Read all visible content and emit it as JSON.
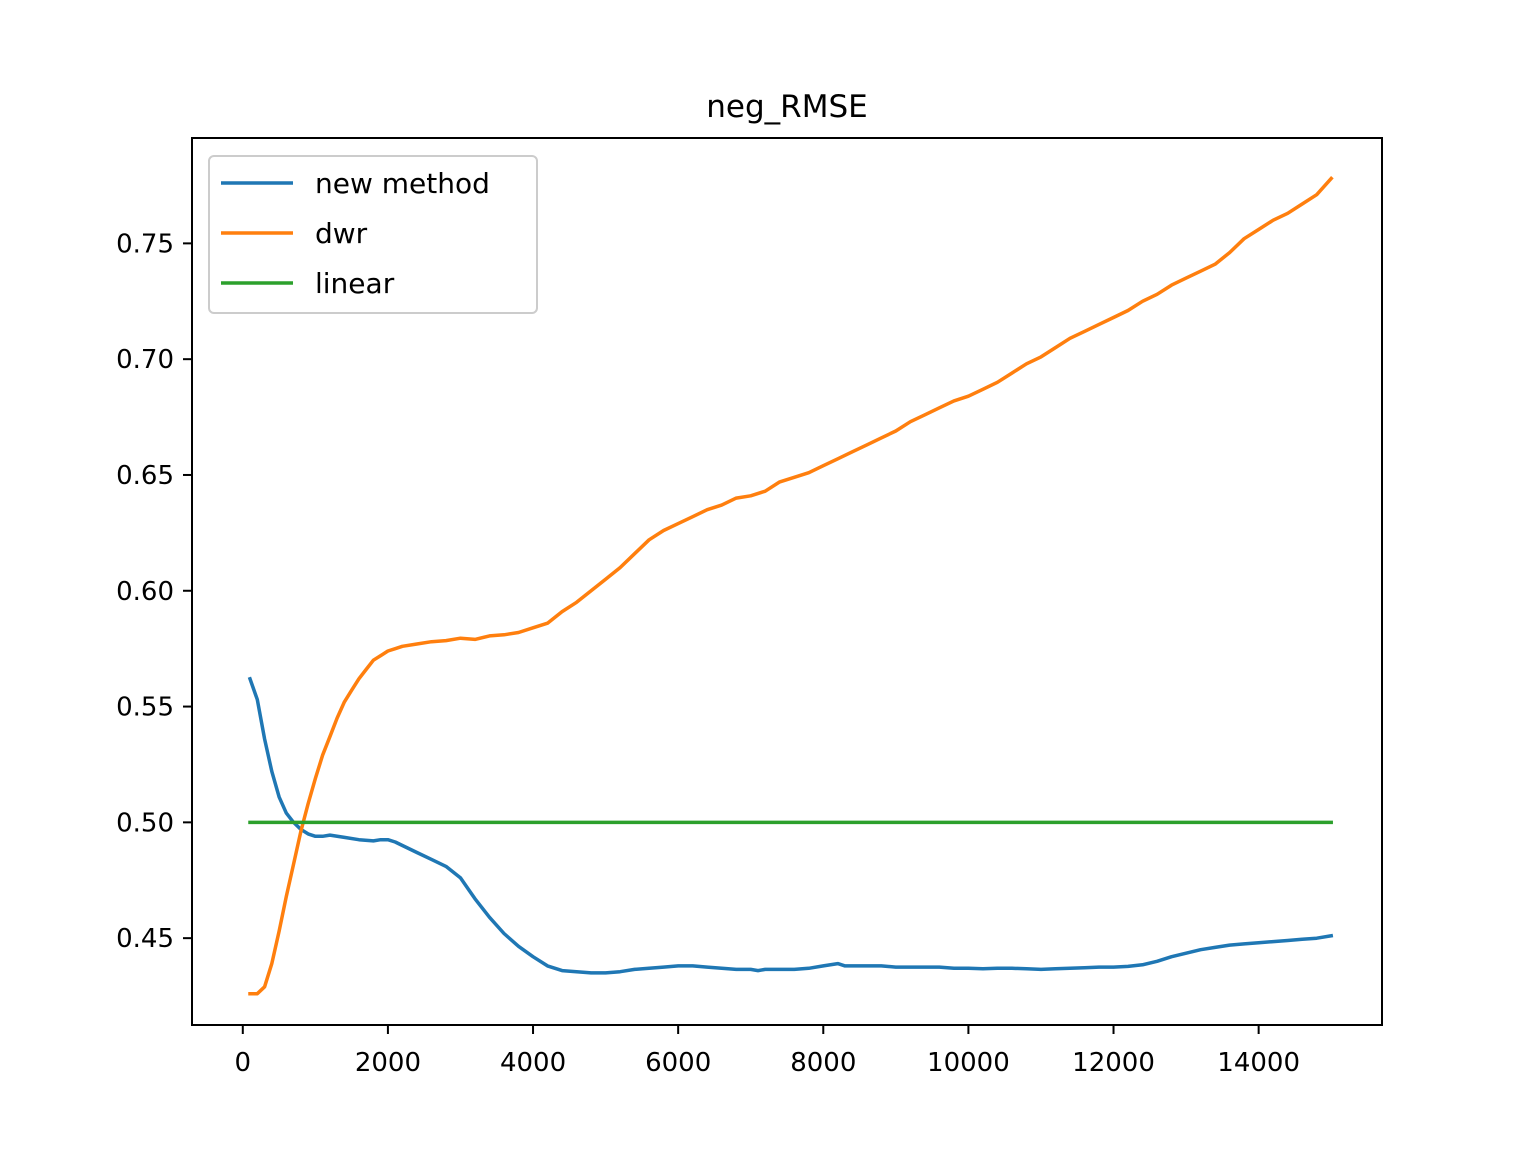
{
  "chart_data": {
    "type": "line",
    "title": "neg_RMSE",
    "xlabel": "",
    "ylabel": "",
    "xlim": [
      -700,
      15700
    ],
    "ylim": [
      0.4125,
      0.7955
    ],
    "xticks": [
      0,
      2000,
      4000,
      6000,
      8000,
      10000,
      12000,
      14000
    ],
    "xtick_labels": [
      "0",
      "2000",
      "4000",
      "6000",
      "8000",
      "10000",
      "12000",
      "14000"
    ],
    "yticks": [
      0.45,
      0.5,
      0.55,
      0.6,
      0.65,
      0.7,
      0.75
    ],
    "ytick_labels": [
      "0.45",
      "0.50",
      "0.55",
      "0.60",
      "0.65",
      "0.70",
      "0.75"
    ],
    "grid": false,
    "legend_position": "top-left",
    "series": [
      {
        "name": "new method",
        "color": "#1f77b4",
        "points": [
          [
            100,
            0.562
          ],
          [
            200,
            0.553
          ],
          [
            300,
            0.536
          ],
          [
            400,
            0.522
          ],
          [
            500,
            0.511
          ],
          [
            600,
            0.504
          ],
          [
            700,
            0.5
          ],
          [
            800,
            0.497
          ],
          [
            900,
            0.495
          ],
          [
            1000,
            0.494
          ],
          [
            1100,
            0.494
          ],
          [
            1200,
            0.4945
          ],
          [
            1400,
            0.4935
          ],
          [
            1600,
            0.4925
          ],
          [
            1800,
            0.492
          ],
          [
            1900,
            0.4925
          ],
          [
            2000,
            0.4925
          ],
          [
            2100,
            0.4915
          ],
          [
            2200,
            0.49
          ],
          [
            2400,
            0.487
          ],
          [
            2600,
            0.484
          ],
          [
            2800,
            0.481
          ],
          [
            3000,
            0.476
          ],
          [
            3200,
            0.467
          ],
          [
            3400,
            0.459
          ],
          [
            3600,
            0.452
          ],
          [
            3800,
            0.4465
          ],
          [
            4000,
            0.442
          ],
          [
            4200,
            0.438
          ],
          [
            4400,
            0.436
          ],
          [
            4600,
            0.4355
          ],
          [
            4800,
            0.435
          ],
          [
            5000,
            0.435
          ],
          [
            5200,
            0.4355
          ],
          [
            5400,
            0.4365
          ],
          [
            5600,
            0.437
          ],
          [
            5800,
            0.4375
          ],
          [
            6000,
            0.438
          ],
          [
            6200,
            0.438
          ],
          [
            6400,
            0.4375
          ],
          [
            6600,
            0.437
          ],
          [
            6800,
            0.4365
          ],
          [
            7000,
            0.4365
          ],
          [
            7100,
            0.436
          ],
          [
            7200,
            0.4365
          ],
          [
            7400,
            0.4365
          ],
          [
            7600,
            0.4365
          ],
          [
            7800,
            0.437
          ],
          [
            8000,
            0.438
          ],
          [
            8200,
            0.439
          ],
          [
            8300,
            0.438
          ],
          [
            8600,
            0.438
          ],
          [
            8800,
            0.438
          ],
          [
            9000,
            0.4375
          ],
          [
            9200,
            0.4375
          ],
          [
            9400,
            0.4375
          ],
          [
            9600,
            0.4375
          ],
          [
            9800,
            0.437
          ],
          [
            10000,
            0.437
          ],
          [
            10200,
            0.4368
          ],
          [
            10400,
            0.437
          ],
          [
            10600,
            0.437
          ],
          [
            10800,
            0.4368
          ],
          [
            11000,
            0.4365
          ],
          [
            11200,
            0.4368
          ],
          [
            11400,
            0.437
          ],
          [
            11600,
            0.4372
          ],
          [
            11800,
            0.4375
          ],
          [
            12000,
            0.4375
          ],
          [
            12200,
            0.4378
          ],
          [
            12400,
            0.4385
          ],
          [
            12600,
            0.44
          ],
          [
            12800,
            0.442
          ],
          [
            13000,
            0.4435
          ],
          [
            13200,
            0.445
          ],
          [
            13400,
            0.446
          ],
          [
            13600,
            0.447
          ],
          [
            13800,
            0.4475
          ],
          [
            14000,
            0.448
          ],
          [
            14200,
            0.4485
          ],
          [
            14400,
            0.449
          ],
          [
            14600,
            0.4495
          ],
          [
            14800,
            0.45
          ],
          [
            15000,
            0.451
          ]
        ]
      },
      {
        "name": "dwr",
        "color": "#ff7f0e",
        "points": [
          [
            100,
            0.426
          ],
          [
            200,
            0.426
          ],
          [
            300,
            0.429
          ],
          [
            400,
            0.439
          ],
          [
            500,
            0.453
          ],
          [
            600,
            0.468
          ],
          [
            700,
            0.482
          ],
          [
            800,
            0.496
          ],
          [
            900,
            0.508
          ],
          [
            1000,
            0.519
          ],
          [
            1100,
            0.529
          ],
          [
            1200,
            0.537
          ],
          [
            1300,
            0.545
          ],
          [
            1400,
            0.552
          ],
          [
            1500,
            0.557
          ],
          [
            1600,
            0.562
          ],
          [
            1700,
            0.566
          ],
          [
            1800,
            0.57
          ],
          [
            1900,
            0.572
          ],
          [
            2000,
            0.574
          ],
          [
            2100,
            0.575
          ],
          [
            2200,
            0.576
          ],
          [
            2400,
            0.577
          ],
          [
            2600,
            0.578
          ],
          [
            2800,
            0.5785
          ],
          [
            3000,
            0.5795
          ],
          [
            3200,
            0.579
          ],
          [
            3400,
            0.5805
          ],
          [
            3600,
            0.581
          ],
          [
            3800,
            0.582
          ],
          [
            4000,
            0.584
          ],
          [
            4200,
            0.586
          ],
          [
            4400,
            0.591
          ],
          [
            4600,
            0.595
          ],
          [
            4800,
            0.6
          ],
          [
            5000,
            0.605
          ],
          [
            5200,
            0.61
          ],
          [
            5400,
            0.616
          ],
          [
            5600,
            0.622
          ],
          [
            5800,
            0.626
          ],
          [
            6000,
            0.629
          ],
          [
            6200,
            0.632
          ],
          [
            6400,
            0.635
          ],
          [
            6600,
            0.637
          ],
          [
            6800,
            0.64
          ],
          [
            7000,
            0.641
          ],
          [
            7200,
            0.643
          ],
          [
            7400,
            0.647
          ],
          [
            7600,
            0.649
          ],
          [
            7800,
            0.651
          ],
          [
            8000,
            0.654
          ],
          [
            8200,
            0.657
          ],
          [
            8400,
            0.66
          ],
          [
            8600,
            0.663
          ],
          [
            8800,
            0.666
          ],
          [
            9000,
            0.669
          ],
          [
            9200,
            0.673
          ],
          [
            9400,
            0.676
          ],
          [
            9600,
            0.679
          ],
          [
            9800,
            0.682
          ],
          [
            10000,
            0.684
          ],
          [
            10200,
            0.687
          ],
          [
            10400,
            0.69
          ],
          [
            10600,
            0.694
          ],
          [
            10800,
            0.698
          ],
          [
            11000,
            0.701
          ],
          [
            11200,
            0.705
          ],
          [
            11400,
            0.709
          ],
          [
            11600,
            0.712
          ],
          [
            11800,
            0.715
          ],
          [
            12000,
            0.718
          ],
          [
            12200,
            0.721
          ],
          [
            12400,
            0.725
          ],
          [
            12600,
            0.728
          ],
          [
            12800,
            0.732
          ],
          [
            13000,
            0.735
          ],
          [
            13200,
            0.738
          ],
          [
            13400,
            0.741
          ],
          [
            13600,
            0.746
          ],
          [
            13800,
            0.752
          ],
          [
            14000,
            0.756
          ],
          [
            14200,
            0.76
          ],
          [
            14400,
            0.763
          ],
          [
            14600,
            0.767
          ],
          [
            14800,
            0.771
          ],
          [
            15000,
            0.778
          ]
        ]
      },
      {
        "name": "linear",
        "color": "#2ca02c",
        "points": [
          [
            100,
            0.5
          ],
          [
            15000,
            0.5
          ]
        ]
      }
    ]
  }
}
